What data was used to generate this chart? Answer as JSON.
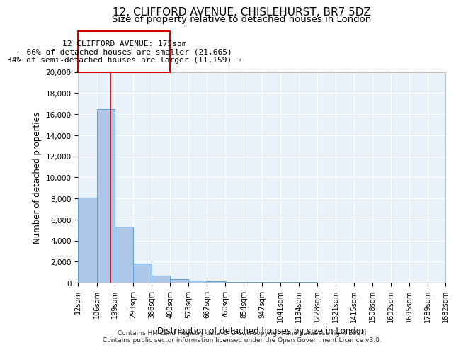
{
  "title": "12, CLIFFORD AVENUE, CHISLEHURST, BR7 5DZ",
  "subtitle": "Size of property relative to detached houses in London",
  "xlabel": "Distribution of detached houses by size in London",
  "ylabel": "Number of detached properties",
  "bar_color": "#aec6e8",
  "bar_edge_color": "#5a9fd4",
  "bg_color": "#e8f0f8",
  "grid_color": "white",
  "annotation_box_color": "#cc0000",
  "annotation_line1": "12 CLIFFORD AVENUE: 175sqm",
  "annotation_line2": "← 66% of detached houses are smaller (21,665)",
  "annotation_line3": "34% of semi-detached houses are larger (11,159) →",
  "vline_x": 175,
  "vline_color": "#cc0000",
  "ylim": [
    0,
    20000
  ],
  "yticks": [
    0,
    2000,
    4000,
    6000,
    8000,
    10000,
    12000,
    14000,
    16000,
    18000,
    20000
  ],
  "bin_edges": [
    12,
    106,
    199,
    293,
    386,
    480,
    573,
    667,
    760,
    854,
    947,
    1041,
    1134,
    1228,
    1321,
    1415,
    1508,
    1602,
    1695,
    1789,
    1882
  ],
  "bar_heights": [
    8050,
    16500,
    5300,
    1800,
    650,
    350,
    200,
    130,
    100,
    80,
    60,
    50,
    40,
    30,
    25,
    20,
    15,
    12,
    10,
    8
  ],
  "xtick_labels": [
    "12sqm",
    "106sqm",
    "199sqm",
    "293sqm",
    "386sqm",
    "480sqm",
    "573sqm",
    "667sqm",
    "760sqm",
    "854sqm",
    "947sqm",
    "1041sqm",
    "1134sqm",
    "1228sqm",
    "1321sqm",
    "1415sqm",
    "1508sqm",
    "1602sqm",
    "1695sqm",
    "1789sqm",
    "1882sqm"
  ],
  "footer_text": "Contains HM Land Registry data © Crown copyright and database right 2024.\nContains public sector information licensed under the Open Government Licence v3.0.",
  "title_fontsize": 11,
  "subtitle_fontsize": 9.5,
  "axis_label_fontsize": 8.5,
  "tick_fontsize": 7.5,
  "annotation_fontsize": 8,
  "footer_fontsize": 6.5
}
